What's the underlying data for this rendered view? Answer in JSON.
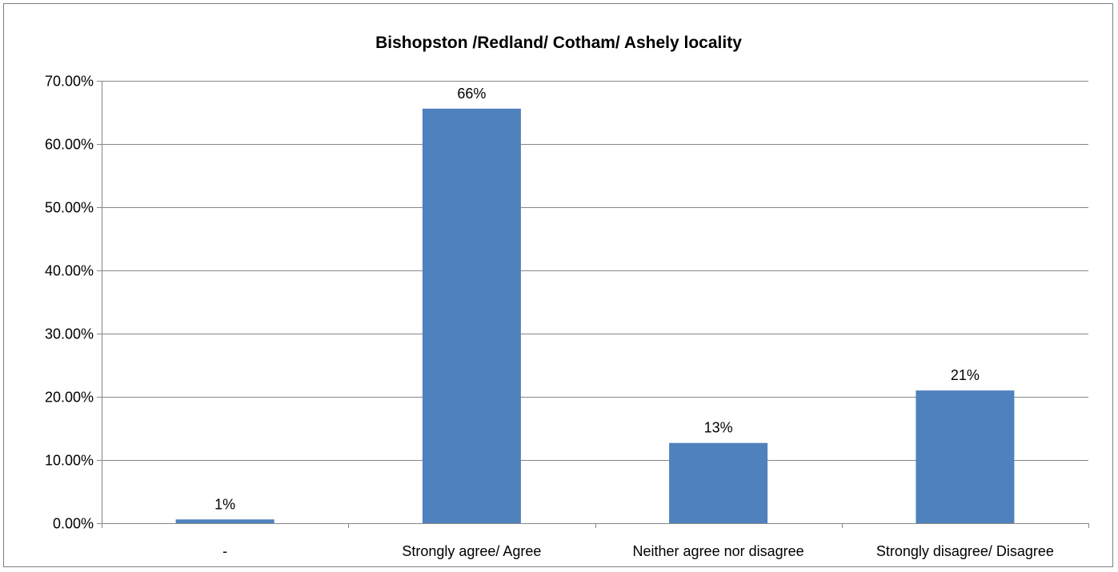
{
  "chart_data": {
    "type": "bar",
    "title": "Bishopston /Redland/ Cotham/ Ashely locality",
    "xlabel": "",
    "ylabel": "",
    "categories": [
      "-",
      "Strongly agree/ Agree",
      "Neither agree nor disagree",
      "Strongly disagree/ Disagree"
    ],
    "values": [
      0.6,
      65.6,
      12.7,
      21.0
    ],
    "data_labels": [
      "1%",
      "66%",
      "13%",
      "21%"
    ],
    "ylim": [
      0,
      70
    ],
    "yticks": [
      0,
      10,
      20,
      30,
      40,
      50,
      60,
      70
    ],
    "ytick_labels": [
      "0.00%",
      "10.00%",
      "20.00%",
      "30.00%",
      "40.00%",
      "50.00%",
      "60.00%",
      "70.00%"
    ],
    "grid": true,
    "legend": "none",
    "bar_color": "#4f81bd",
    "grid_color": "#868686"
  }
}
